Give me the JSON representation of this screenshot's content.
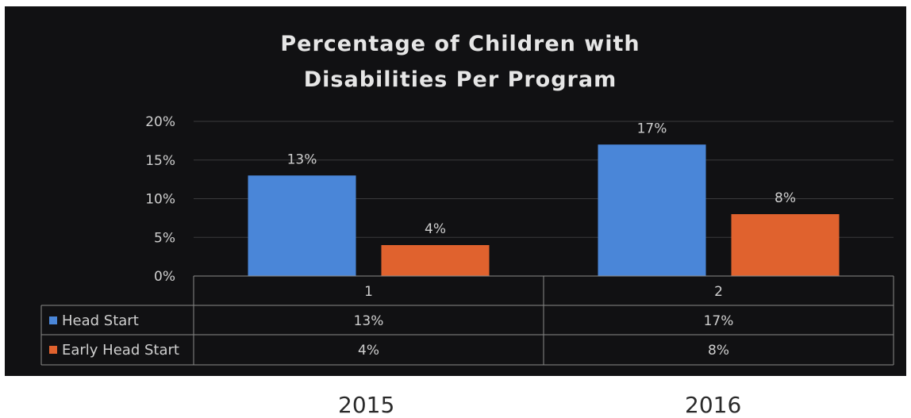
{
  "chart_data": {
    "type": "bar",
    "title_lines": [
      "Percentage of Children with",
      "Disabilities Per Program"
    ],
    "categories": [
      "1",
      "2"
    ],
    "series": [
      {
        "name": "Head Start",
        "values": [
          13,
          17
        ],
        "labels": [
          "13%",
          "17%"
        ],
        "color": "#4a86d8"
      },
      {
        "name": "Early Head Start",
        "values": [
          4,
          8
        ],
        "labels": [
          "4%",
          "8%"
        ],
        "color": "#e0622e"
      }
    ],
    "ylim": [
      0,
      20
    ],
    "yticks": [
      "0%",
      "5%",
      "10%",
      "15%",
      "20%"
    ],
    "grid": true,
    "legend": "data-table",
    "colors": {
      "background": "#111113",
      "grid": "#3a3a3c",
      "text": "#cfcfcf",
      "title": "#e6e6e6"
    }
  },
  "year_labels": [
    "2015",
    "2016"
  ]
}
